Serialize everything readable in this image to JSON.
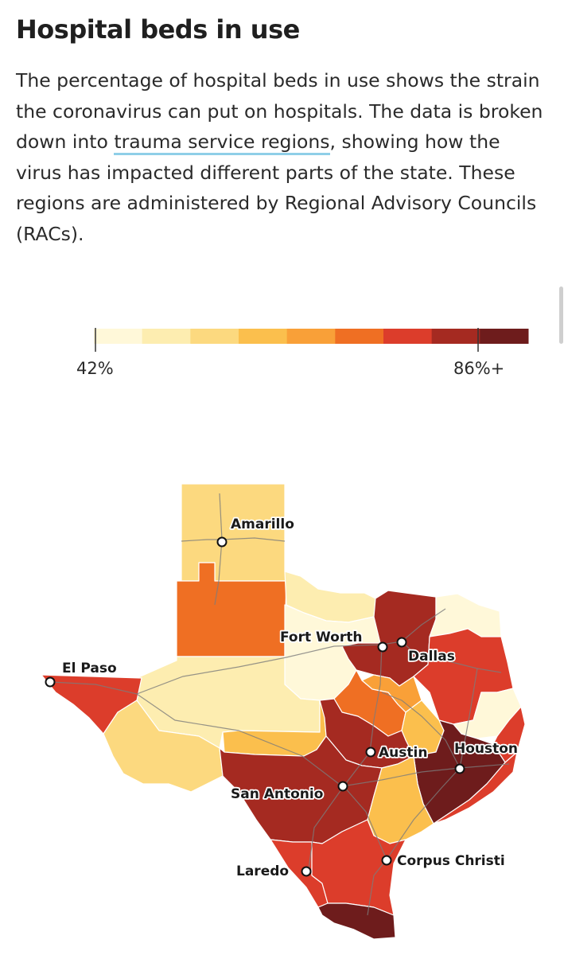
{
  "header": {
    "title": "Hospital beds in use",
    "intro_before": "The percentage of hospital beds in use shows the strain the coronavirus can put on hospitals. The data is broken down into ",
    "intro_link": "trauma service regions",
    "intro_after": ", showing how the virus has impacted different parts of the state. These regions are administered by Regional Advisory Councils (RACs)."
  },
  "legend": {
    "min_label": "42%",
    "max_label": "86%+",
    "colors": [
      "#fff8d9",
      "#fdedb0",
      "#fcd97f",
      "#fbbf4d",
      "#f9a038",
      "#ef6f23",
      "#dc3d2b",
      "#a52a21",
      "#6e1c1c"
    ]
  },
  "map": {
    "cities": [
      {
        "id": "amarillo",
        "label": "Amarillo"
      },
      {
        "id": "el-paso",
        "label": "El Paso"
      },
      {
        "id": "fort-worth",
        "label": "Fort Worth"
      },
      {
        "id": "dallas",
        "label": "Dallas"
      },
      {
        "id": "austin",
        "label": "Austin"
      },
      {
        "id": "houston",
        "label": "Houston"
      },
      {
        "id": "san-antonio",
        "label": "San Antonio"
      },
      {
        "id": "laredo",
        "label": "Laredo"
      },
      {
        "id": "corpus-christi",
        "label": "Corpus Christi"
      }
    ]
  }
}
